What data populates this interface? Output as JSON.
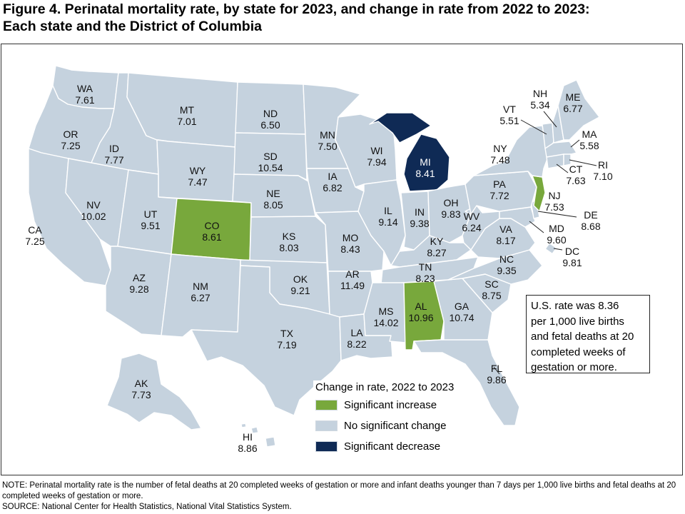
{
  "title_line1": "Figure 4. Perinatal mortality rate, by state for 2023, and change in rate from 2022 to 2023:",
  "title_line2": "Each state and the District of Columbia",
  "colors": {
    "increase": "#78a83c",
    "no_change": "#c5d2de",
    "decrease": "#0f2a55",
    "background": "#ffffff"
  },
  "us_rate_box": {
    "line1": "U.S. rate was 8.36",
    "line2": "per 1,000 live births",
    "line3": "and fetal deaths at 20",
    "line4": "completed weeks of",
    "line5": "gestation or more."
  },
  "legend": {
    "title": "Change in rate, 2022 to 2023",
    "items": [
      {
        "label": "Significant increase",
        "category": "increase"
      },
      {
        "label": "No significant change",
        "category": "no_change"
      },
      {
        "label": "Significant decrease",
        "category": "decrease"
      }
    ]
  },
  "states": {
    "WA": {
      "abbr": "WA",
      "rate": "7.61",
      "change": "no_change"
    },
    "OR": {
      "abbr": "OR",
      "rate": "7.25",
      "change": "no_change"
    },
    "CA": {
      "abbr": "CA",
      "rate": "7.25",
      "change": "no_change"
    },
    "ID": {
      "abbr": "ID",
      "rate": "7.77",
      "change": "no_change"
    },
    "NV": {
      "abbr": "NV",
      "rate": "10.02",
      "change": "no_change"
    },
    "MT": {
      "abbr": "MT",
      "rate": "7.01",
      "change": "no_change"
    },
    "WY": {
      "abbr": "WY",
      "rate": "7.47",
      "change": "no_change"
    },
    "UT": {
      "abbr": "UT",
      "rate": "9.51",
      "change": "no_change"
    },
    "AZ": {
      "abbr": "AZ",
      "rate": "9.28",
      "change": "no_change"
    },
    "CO": {
      "abbr": "CO",
      "rate": "8.61",
      "change": "increase"
    },
    "NM": {
      "abbr": "NM",
      "rate": "6.27",
      "change": "no_change"
    },
    "ND": {
      "abbr": "ND",
      "rate": "6.50",
      "change": "no_change"
    },
    "SD": {
      "abbr": "SD",
      "rate": "10.54",
      "change": "no_change"
    },
    "NE": {
      "abbr": "NE",
      "rate": "8.05",
      "change": "no_change"
    },
    "KS": {
      "abbr": "KS",
      "rate": "8.03",
      "change": "no_change"
    },
    "OK": {
      "abbr": "OK",
      "rate": "9.21",
      "change": "no_change"
    },
    "TX": {
      "abbr": "TX",
      "rate": "7.19",
      "change": "no_change"
    },
    "MN": {
      "abbr": "MN",
      "rate": "7.50",
      "change": "no_change"
    },
    "IA": {
      "abbr": "IA",
      "rate": "6.82",
      "change": "no_change"
    },
    "MO": {
      "abbr": "MO",
      "rate": "8.43",
      "change": "no_change"
    },
    "AR": {
      "abbr": "AR",
      "rate": "11.49",
      "change": "no_change"
    },
    "LA": {
      "abbr": "LA",
      "rate": "8.22",
      "change": "no_change"
    },
    "WI": {
      "abbr": "WI",
      "rate": "7.94",
      "change": "no_change"
    },
    "IL": {
      "abbr": "IL",
      "rate": "9.14",
      "change": "no_change"
    },
    "MI": {
      "abbr": "MI",
      "rate": "8.41",
      "change": "decrease"
    },
    "IN": {
      "abbr": "IN",
      "rate": "9.38",
      "change": "no_change"
    },
    "OH": {
      "abbr": "OH",
      "rate": "9.83",
      "change": "no_change"
    },
    "KY": {
      "abbr": "KY",
      "rate": "8.27",
      "change": "no_change"
    },
    "TN": {
      "abbr": "TN",
      "rate": "8.23",
      "change": "no_change"
    },
    "MS": {
      "abbr": "MS",
      "rate": "14.02",
      "change": "no_change"
    },
    "AL": {
      "abbr": "AL",
      "rate": "10.96",
      "change": "increase"
    },
    "GA": {
      "abbr": "GA",
      "rate": "10.74",
      "change": "no_change"
    },
    "FL": {
      "abbr": "FL",
      "rate": "9.86",
      "change": "no_change"
    },
    "SC": {
      "abbr": "SC",
      "rate": "8.75",
      "change": "no_change"
    },
    "NC": {
      "abbr": "NC",
      "rate": "9.35",
      "change": "no_change"
    },
    "VA": {
      "abbr": "VA",
      "rate": "8.17",
      "change": "no_change"
    },
    "WV": {
      "abbr": "WV",
      "rate": "6.24",
      "change": "no_change"
    },
    "PA": {
      "abbr": "PA",
      "rate": "7.72",
      "change": "no_change"
    },
    "NY": {
      "abbr": "NY",
      "rate": "7.48",
      "change": "no_change"
    },
    "VT": {
      "abbr": "VT",
      "rate": "5.51",
      "change": "no_change"
    },
    "NH": {
      "abbr": "NH",
      "rate": "5.34",
      "change": "no_change"
    },
    "ME": {
      "abbr": "ME",
      "rate": "6.77",
      "change": "no_change"
    },
    "MA": {
      "abbr": "MA",
      "rate": "5.58",
      "change": "no_change"
    },
    "RI": {
      "abbr": "RI",
      "rate": "7.10",
      "change": "no_change"
    },
    "CT": {
      "abbr": "CT",
      "rate": "7.63",
      "change": "no_change"
    },
    "NJ": {
      "abbr": "NJ",
      "rate": "7.53",
      "change": "increase"
    },
    "DE": {
      "abbr": "DE",
      "rate": "8.68",
      "change": "no_change"
    },
    "MD": {
      "abbr": "MD",
      "rate": "9.60",
      "change": "no_change"
    },
    "DC": {
      "abbr": "DC",
      "rate": "9.81",
      "change": "no_change"
    },
    "AK": {
      "abbr": "AK",
      "rate": "7.73",
      "change": "no_change"
    },
    "HI": {
      "abbr": "HI",
      "rate": "8.86",
      "change": "no_change"
    }
  },
  "note": "NOTE: Perinatal mortality rate is the number of fetal deaths at 20 completed weeks of gestation or more and infant deaths younger than 7 days per 1,000 live births and fetal deaths at 20 completed weeks of gestation or more.",
  "source": "SOURCE: National Center for Health Statistics, National Vital Statistics System."
}
